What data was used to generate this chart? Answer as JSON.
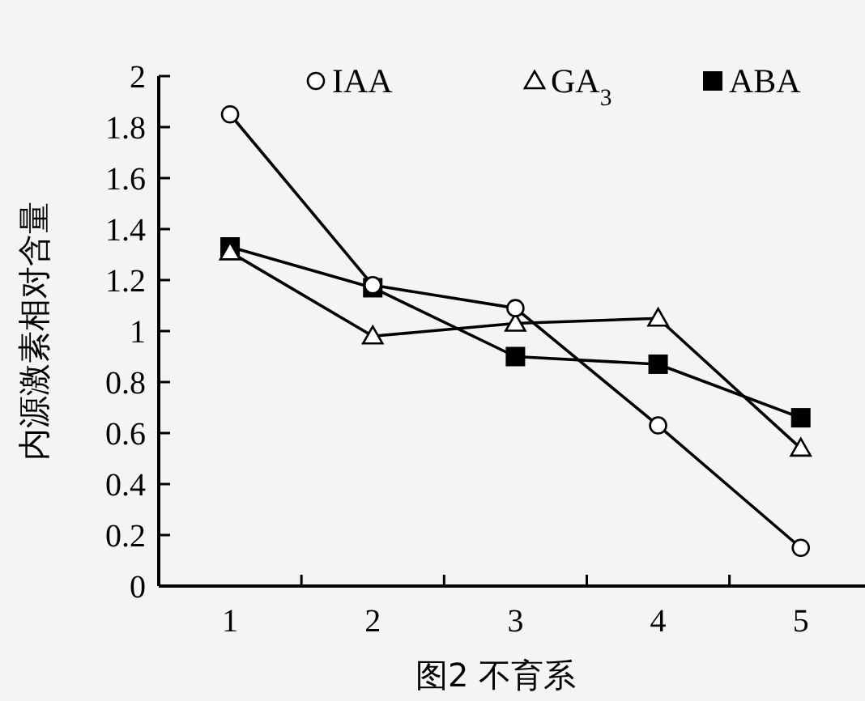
{
  "chart_data": {
    "type": "line",
    "xlabel": "图2 不育系",
    "ylabel": "内源激素相对含量",
    "x": [
      1,
      2,
      3,
      4,
      5
    ],
    "xlim": [
      0.5,
      5.45
    ],
    "xticks": [
      1,
      {
        "value": 1.5,
        "label": null
      },
      2,
      {
        "value": 2.5,
        "label": null
      },
      3,
      {
        "value": 3.5,
        "label": null
      },
      4,
      {
        "value": 4.5,
        "label": null
      },
      5
    ],
    "ylim": [
      0,
      2
    ],
    "yticks": [
      0,
      0.2,
      0.4,
      0.6,
      0.8,
      1,
      1.2,
      1.4,
      1.6,
      1.8,
      2
    ],
    "legend": "top",
    "line_style": "solid",
    "series": [
      {
        "name": "IAA",
        "color": "#000000",
        "marker": "circle",
        "values": [
          1.85,
          1.18,
          1.09,
          0.63,
          0.15
        ]
      },
      {
        "name": "GA$_{3}$",
        "color": "#000000",
        "marker": "triangle",
        "values": [
          1.31,
          0.98,
          1.03,
          1.05,
          0.54
        ]
      },
      {
        "name": "ABA",
        "color": "#000000",
        "marker": "square",
        "values": [
          1.33,
          1.17,
          0.9,
          0.87,
          0.66
        ]
      }
    ]
  }
}
